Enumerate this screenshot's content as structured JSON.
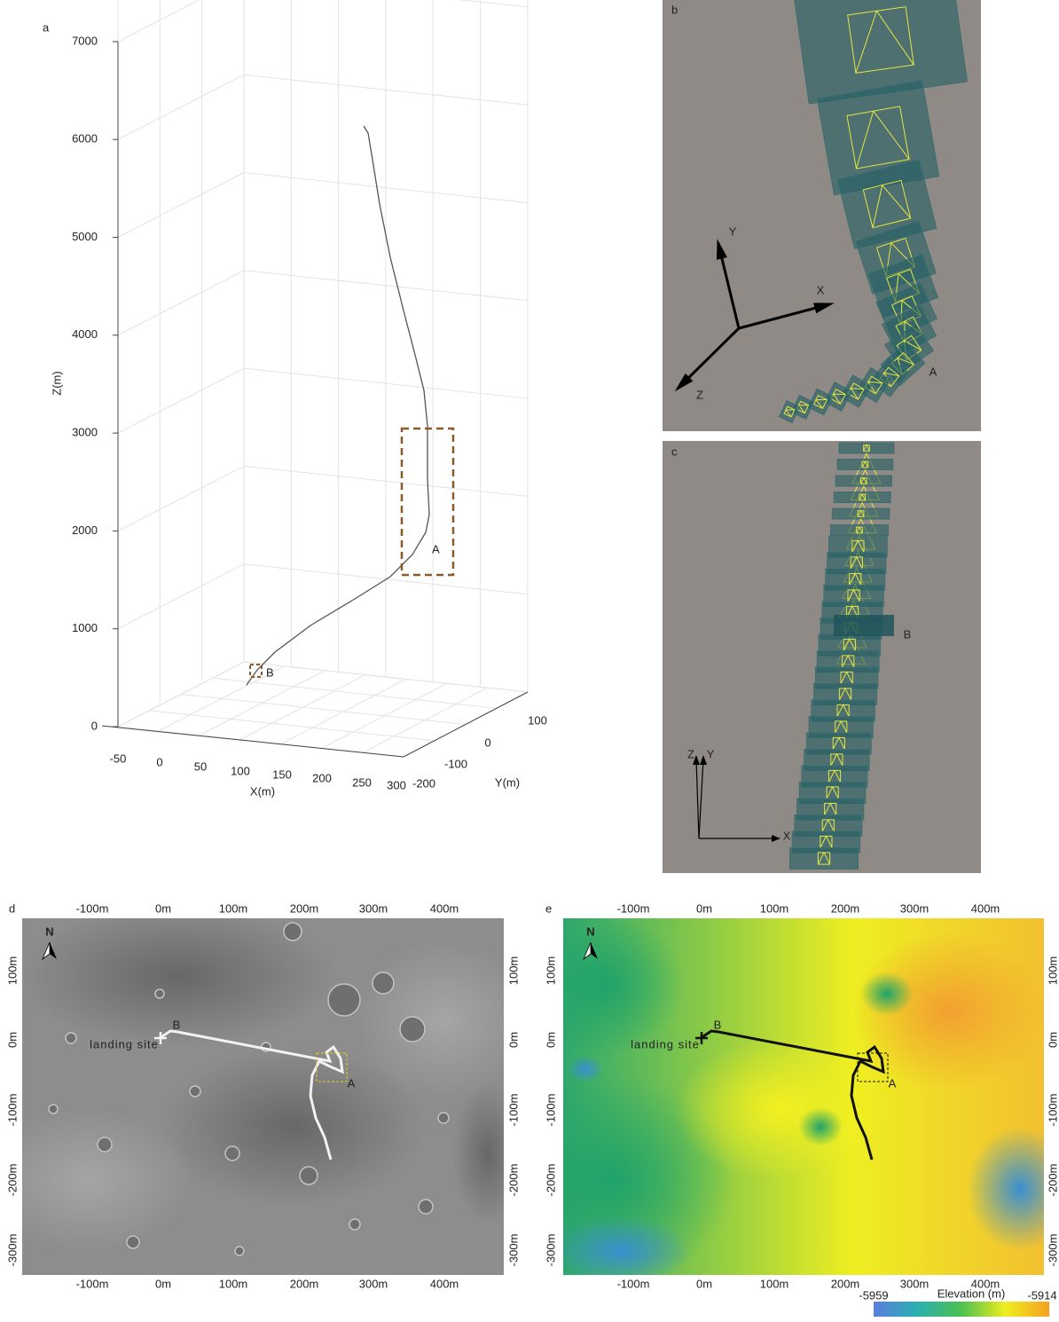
{
  "panels": {
    "a": {
      "label": "a",
      "z_axis_title": "Z(m)",
      "x_axis_title": "X(m)",
      "y_axis_title": "Y(m)",
      "z_ticks": [
        7000,
        6000,
        5000,
        4000,
        3000,
        2000,
        1000,
        0
      ],
      "x_ticks": [
        -50,
        0,
        50,
        100,
        150,
        200,
        250,
        300
      ],
      "y_ticks": [
        -200,
        -100,
        0,
        100
      ],
      "box_labels": [
        "A",
        "B"
      ]
    },
    "b": {
      "label": "b",
      "axes": [
        "Y",
        "X",
        "Z"
      ],
      "marker": "A"
    },
    "c": {
      "label": "c",
      "axes": [
        "Z",
        "Y",
        "X"
      ],
      "marker": "B"
    },
    "d": {
      "label": "d",
      "x_ticks": [
        "-100m",
        "0m",
        "100m",
        "200m",
        "300m",
        "400m"
      ],
      "y_ticks": [
        "100m",
        "0m",
        "-100m",
        "-200m",
        "-300m"
      ],
      "north": "N",
      "site": "landing site",
      "points": [
        "B",
        "A"
      ]
    },
    "e": {
      "label": "e",
      "x_ticks": [
        "-100m",
        "0m",
        "100m",
        "200m",
        "300m",
        "400m"
      ],
      "y_ticks": [
        "100m",
        "0m",
        "-100m",
        "-200m",
        "-300m"
      ],
      "north": "N",
      "site": "landing site",
      "points": [
        "B",
        "A"
      ],
      "colorbar": {
        "title": "Elevation (m)",
        "min": -5959,
        "max": -5914
      }
    }
  }
}
